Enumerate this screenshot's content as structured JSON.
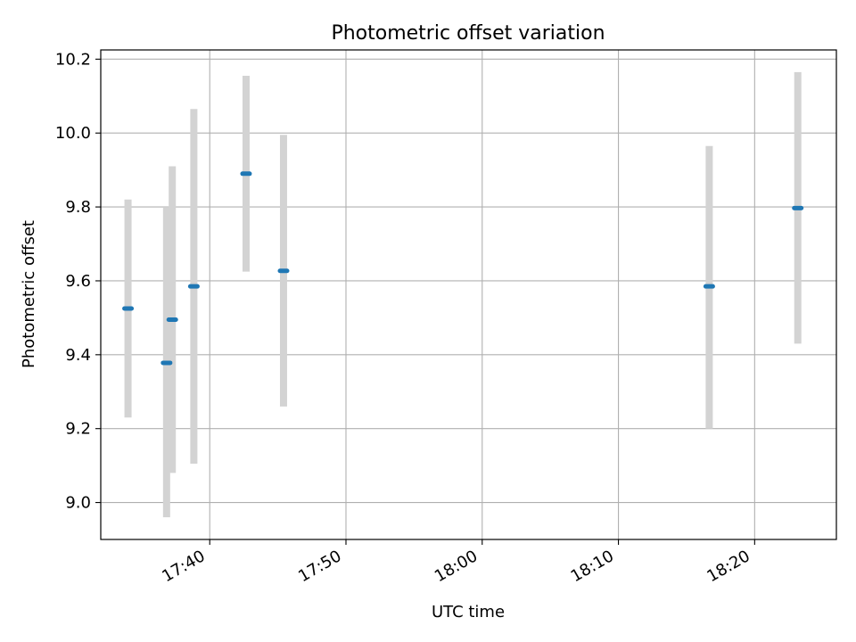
{
  "chart_data": {
    "type": "scatter",
    "title": "Photometric offset variation",
    "xlabel": "UTC time",
    "ylabel": "Photometric offset",
    "x_axis_type": "time",
    "xlim": [
      "17:32",
      "18:26"
    ],
    "ylim": [
      8.9,
      10.225
    ],
    "x_ticks": [
      "17:40",
      "17:50",
      "18:00",
      "18:10",
      "18:20"
    ],
    "y_ticks": [
      9.0,
      9.2,
      9.4,
      9.6,
      9.8,
      10.0,
      10.2
    ],
    "y_tick_labels": [
      "9.0",
      "9.2",
      "9.4",
      "9.6",
      "9.8",
      "10.0",
      "10.2"
    ],
    "grid": true,
    "colors": {
      "marker": "#1f77b4",
      "errorbar": "#d3d3d3",
      "grid": "#b0b0b0"
    },
    "points": [
      {
        "x": "17:34",
        "y": 9.525,
        "ylow": 9.23,
        "yhigh": 9.82
      },
      {
        "x": "17:36:50",
        "y": 9.378,
        "ylow": 8.96,
        "yhigh": 9.8
      },
      {
        "x": "17:37:15",
        "y": 9.495,
        "ylow": 9.08,
        "yhigh": 9.91
      },
      {
        "x": "17:38:50",
        "y": 9.585,
        "ylow": 9.105,
        "yhigh": 10.065
      },
      {
        "x": "17:42:40",
        "y": 9.89,
        "ylow": 9.625,
        "yhigh": 10.155
      },
      {
        "x": "17:45:25",
        "y": 9.627,
        "ylow": 9.26,
        "yhigh": 9.995
      },
      {
        "x": "18:16:40",
        "y": 9.585,
        "ylow": 9.2,
        "yhigh": 9.965
      },
      {
        "x": "18:23:10",
        "y": 9.797,
        "ylow": 9.43,
        "yhigh": 10.165
      }
    ]
  }
}
